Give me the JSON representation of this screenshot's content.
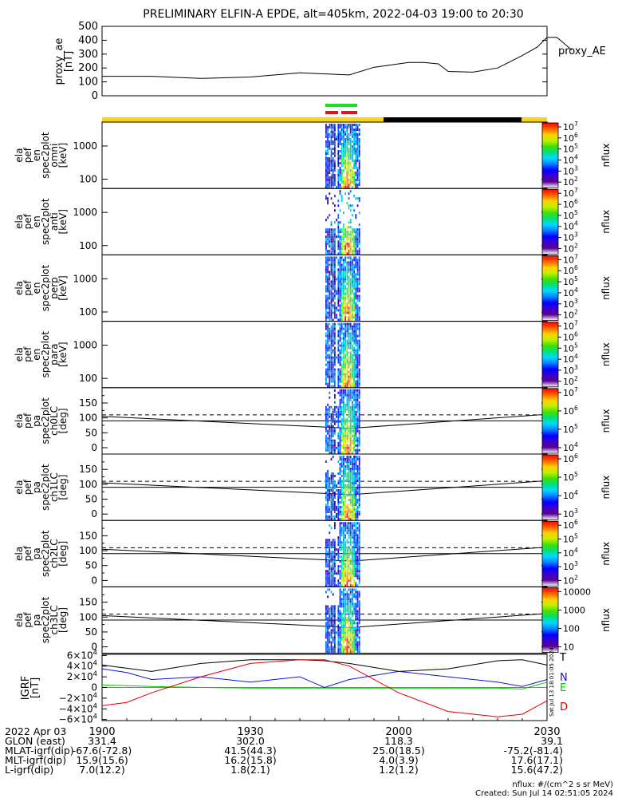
{
  "title": "PRELIMINARY ELFIN-A EPDE, alt=405km, 2022-04-03 19:00 to 20:30",
  "colors": {
    "yellow": "#f7d417",
    "black": "#000000",
    "green": "#22dd22",
    "red": "#ee1111",
    "blue": "#1414e0",
    "grn_line": "#00c800",
    "red_line": "#e00000"
  },
  "chart_data": [
    {
      "type": "line",
      "ylabel_lines": [
        "proxy_ae",
        "[nT]"
      ],
      "right_label": "proxy_AE",
      "yticks": [
        "500",
        "400",
        "300",
        "200",
        "100",
        "0"
      ],
      "ylim": [
        0,
        500
      ],
      "x_minutes": [
        0,
        10,
        20,
        30,
        40,
        50,
        55,
        60,
        62,
        65,
        68,
        70,
        75,
        80,
        85,
        88,
        90,
        92,
        95
      ],
      "y": [
        140,
        140,
        125,
        135,
        165,
        150,
        205,
        230,
        240,
        240,
        230,
        175,
        170,
        200,
        290,
        350,
        420,
        420,
        330
      ]
    },
    {
      "type": "heatmap",
      "panels": [
        {
          "ylabel_lines": [
            "ela",
            "pef",
            "en",
            "spec2plot",
            "omni",
            "[keV]"
          ],
          "yticks": [
            "1000",
            "100"
          ],
          "cb_ticks": [
            "10^7",
            "10^6",
            "10^5",
            "10^4",
            "10^3",
            "10^2"
          ],
          "cb_label": "nflux"
        },
        {
          "ylabel_lines": [
            "ela",
            "pef",
            "en",
            "spec2plot",
            "anti",
            "[keV]"
          ],
          "yticks": [
            "1000",
            "100"
          ],
          "cb_ticks": [
            "10^7",
            "10^6",
            "10^5",
            "10^4",
            "10^3",
            "10^2"
          ],
          "cb_label": "nflux"
        },
        {
          "ylabel_lines": [
            "ela",
            "pef",
            "en",
            "spec2plot",
            "perp",
            "[keV]"
          ],
          "yticks": [
            "1000",
            "100"
          ],
          "cb_ticks": [
            "10^7",
            "10^6",
            "10^5",
            "10^4",
            "10^3",
            "10^2"
          ],
          "cb_label": "nflux"
        },
        {
          "ylabel_lines": [
            "ela",
            "pef",
            "en",
            "spec2plot",
            "para",
            "[keV]"
          ],
          "yticks": [
            "1000",
            "100"
          ],
          "cb_ticks": [
            "10^7",
            "10^6",
            "10^5",
            "10^4",
            "10^3",
            "10^2"
          ],
          "cb_label": "nflux"
        },
        {
          "ylabel_lines": [
            "ela",
            "pef",
            "pa",
            "spec2plot",
            "ch0LC",
            "[deg]"
          ],
          "yticks": [
            "150",
            "100",
            "50",
            "0"
          ],
          "cb_ticks": [
            "10^7",
            "10^6",
            "10^5",
            "10^4"
          ],
          "cb_label": "nflux"
        },
        {
          "ylabel_lines": [
            "ela",
            "pef",
            "pa",
            "spec2plot",
            "ch1LC",
            "[deg]"
          ],
          "yticks": [
            "150",
            "100",
            "50",
            "0"
          ],
          "cb_ticks": [
            "10^6",
            "10^5",
            "10^4",
            "10^3"
          ],
          "cb_label": "nflux"
        },
        {
          "ylabel_lines": [
            "ela",
            "pef",
            "pa",
            "spec2plot",
            "ch2LC",
            "[deg]"
          ],
          "yticks": [
            "150",
            "100",
            "50",
            "0"
          ],
          "cb_ticks": [
            "10^6",
            "10^5",
            "10^4",
            "10^3",
            "10^2"
          ],
          "cb_label": "nflux"
        },
        {
          "ylabel_lines": [
            "ela",
            "pef",
            "pa",
            "spec2plot",
            "ch3LC",
            "[deg]"
          ],
          "yticks": [
            "150",
            "100",
            "50",
            "0"
          ],
          "cb_ticks": [
            "10000",
            "1000",
            "100",
            "10"
          ],
          "cb_label": "nflux"
        }
      ]
    },
    {
      "type": "line",
      "ylabel_lines": [
        "IGRF",
        "[nT]"
      ],
      "yticks": [
        "6×10^4",
        "4×10^4",
        "2×10^4",
        "0",
        "−2×10^4",
        "−4×10^4",
        "−6×10^4"
      ],
      "legend": [
        "T",
        "N",
        "E",
        "D"
      ],
      "side_text": "Sat Jul 13 18:01:05 2024",
      "ylim": [
        -60000,
        60000
      ],
      "series": [
        {
          "name": "T",
          "x_minutes": [
            0,
            5,
            10,
            20,
            30,
            40,
            45,
            50,
            60,
            70,
            80,
            85,
            90
          ],
          "y": [
            42000,
            36000,
            30000,
            45000,
            52000,
            52000,
            50000,
            45000,
            30000,
            35000,
            50000,
            52000,
            42000
          ]
        },
        {
          "name": "N",
          "x_minutes": [
            0,
            5,
            10,
            20,
            30,
            40,
            45,
            50,
            60,
            70,
            80,
            85,
            90
          ],
          "y": [
            35000,
            28000,
            15000,
            20000,
            10000,
            20000,
            0,
            15000,
            30000,
            20000,
            10000,
            2000,
            15000
          ]
        },
        {
          "name": "E",
          "x_minutes": [
            0,
            10,
            20,
            30,
            40,
            50,
            60,
            70,
            80,
            85,
            90
          ],
          "y": [
            5000,
            2000,
            0,
            -1000,
            -1000,
            -1000,
            -1000,
            -1000,
            -1000,
            -3000,
            10000
          ]
        },
        {
          "name": "D",
          "x_minutes": [
            0,
            5,
            10,
            20,
            30,
            40,
            45,
            50,
            60,
            70,
            80,
            85,
            90
          ],
          "y": [
            -34000,
            -28000,
            -10000,
            20000,
            45000,
            52000,
            52000,
            40000,
            -10000,
            -45000,
            -55000,
            -50000,
            -25000
          ]
        }
      ]
    }
  ],
  "xaxis": {
    "ticks": [
      "1900",
      "1930",
      "2000",
      "2030"
    ],
    "rows": [
      {
        "label": "2022 Apr 03",
        "values": [
          "",
          "",
          "",
          ""
        ]
      },
      {
        "label": "GLON (east)",
        "values": [
          "331.4",
          "302.0",
          "118.3",
          "39.1"
        ]
      },
      {
        "label": "MLAT-igrf(dip)",
        "values": [
          "-67.6(-72.8)",
          "41.5(44.3)",
          "25.0(18.5)",
          "-75.2(-81.4)"
        ]
      },
      {
        "label": "MLT-igrf(dip)",
        "values": [
          "15.9(15.6)",
          "16.2(15.8)",
          "4.0(3.9)",
          "17.6(17.1)"
        ]
      },
      {
        "label": "L-igrf(dip)",
        "values": [
          "7.0(12.2)",
          "1.8(2.1)",
          "1.2(1.2)",
          "15.6(47.2)"
        ]
      }
    ]
  },
  "footer": {
    "units": "nflux: #/(cm^2 s sr MeV)",
    "created": "Created: Sun Jul 14 02:51:05 2024"
  }
}
